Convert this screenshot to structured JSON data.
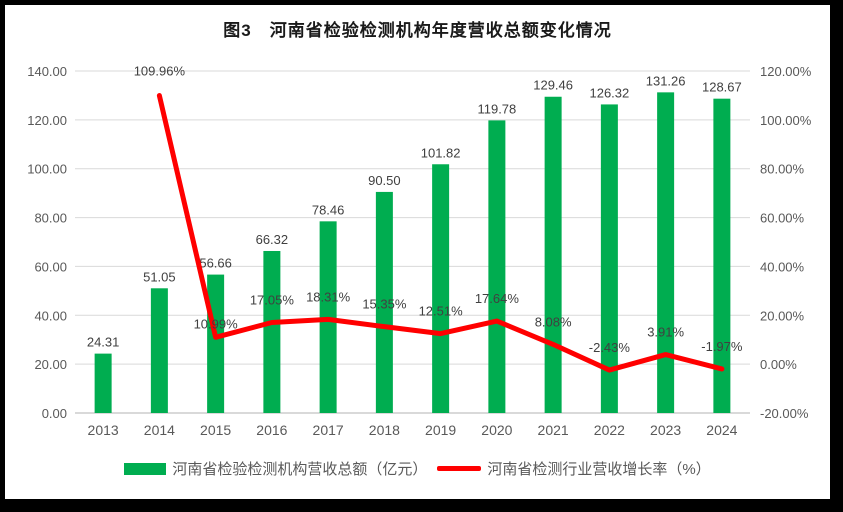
{
  "figure": {
    "title": "图3　河南省检验检测机构年度营收总额变化情况"
  },
  "legend": [
    {
      "label": "河南省检验检测机构营收总额（亿元）",
      "swatch": "bar",
      "color": "#00AD50"
    },
    {
      "label": "河南省检测行业营收增长率（%）",
      "swatch": "line",
      "color": "#FF0000"
    }
  ],
  "colors": {
    "bar": "#00AD50",
    "line": "#FF0000",
    "grid": "#D9D9D9",
    "axis_text": "#595959",
    "data_label": "#404040",
    "border": "#000000"
  },
  "chart_data": {
    "type": "bar",
    "title": "图3　河南省检验检测机构年度营收总额变化情况",
    "categories": [
      "2013",
      "2014",
      "2015",
      "2016",
      "2017",
      "2018",
      "2019",
      "2020",
      "2021",
      "2022",
      "2023",
      "2024"
    ],
    "series": [
      {
        "name": "河南省检验检测机构营收总额（亿元）",
        "type": "bar",
        "axis": "left",
        "color": "#00AD50",
        "values": [
          24.31,
          51.05,
          56.66,
          66.32,
          78.46,
          90.5,
          101.82,
          119.78,
          129.46,
          126.32,
          131.26,
          128.67
        ],
        "labels": [
          "24.31",
          "51.05",
          "56.66",
          "66.32",
          "78.46",
          "90.50",
          "101.82",
          "119.78",
          "129.46",
          "126.32",
          "131.26",
          "128.67"
        ]
      },
      {
        "name": "河南省检测行业营收增长率（%）",
        "type": "line",
        "axis": "right",
        "color": "#FF0000",
        "values": [
          null,
          109.96,
          10.99,
          17.05,
          18.31,
          15.35,
          12.51,
          17.64,
          8.08,
          -2.43,
          3.91,
          -1.97
        ],
        "labels": [
          null,
          "109.96%",
          "10.99%",
          "17.05%",
          "18.31%",
          "15.35%",
          "12.51%",
          "17.64%",
          "8.08%",
          "-2.43%",
          "3.91%",
          "-1.97%"
        ]
      }
    ],
    "left_axis": {
      "min": 0,
      "max": 140,
      "step": 20,
      "ticks": [
        "0.00",
        "20.00",
        "40.00",
        "60.00",
        "80.00",
        "100.00",
        "120.00",
        "140.00"
      ]
    },
    "right_axis": {
      "min": -20,
      "max": 120,
      "step": 20,
      "ticks": [
        "-20.00%",
        "0.00%",
        "20.00%",
        "40.00%",
        "60.00%",
        "80.00%",
        "100.00%",
        "120.00%"
      ]
    },
    "grid": true,
    "legend_position": "bottom",
    "xlabel": "",
    "ylabel": ""
  }
}
